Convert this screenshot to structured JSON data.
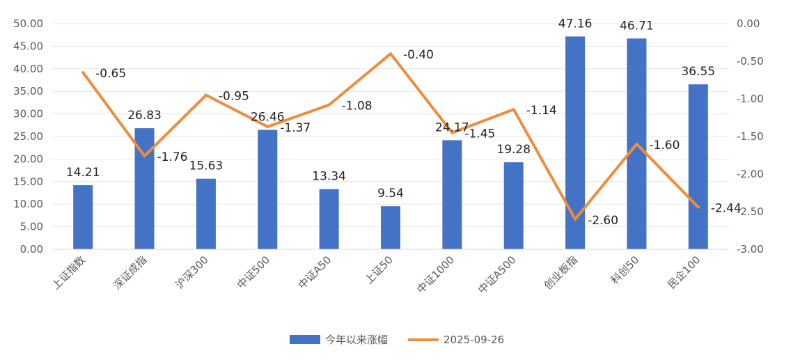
{
  "chart_data": {
    "type": "bar+line",
    "categories": [
      "上证指数",
      "深证成指",
      "沪深300",
      "中证500",
      "中证A50",
      "上证50",
      "中证1000",
      "中证A500",
      "创业板指",
      "科创50",
      "民企100"
    ],
    "series": [
      {
        "name": "今年以来涨幅",
        "type": "bar",
        "axis": "left",
        "color": "#4472C4",
        "values": [
          14.21,
          26.83,
          15.63,
          26.46,
          13.34,
          9.54,
          24.17,
          19.28,
          47.16,
          46.71,
          36.55
        ],
        "labels": [
          "14.21",
          "26.83",
          "15.63",
          "26.46",
          "13.34",
          "9.54",
          "24.17",
          "19.28",
          "47.16",
          "46.71",
          "36.55"
        ]
      },
      {
        "name": "2025-09-26",
        "type": "line",
        "axis": "right",
        "color": "#ED8D3E",
        "values": [
          -0.65,
          -1.76,
          -0.95,
          -1.37,
          -1.08,
          -0.4,
          -1.45,
          -1.14,
          -2.6,
          -1.6,
          -2.44
        ],
        "labels": [
          "-0.65",
          "-1.76",
          "-0.95",
          "-1.37",
          "-1.08",
          "-0.40",
          "-1.45",
          "-1.14",
          "-2.60",
          "-1.60",
          "-2.44"
        ]
      }
    ],
    "left_axis": {
      "ylim": [
        0,
        50
      ],
      "ticks": [
        "0.00",
        "5.00",
        "10.00",
        "15.00",
        "20.00",
        "25.00",
        "30.00",
        "35.00",
        "40.00",
        "45.00",
        "50.00"
      ]
    },
    "right_axis": {
      "ylim": [
        -3,
        0
      ],
      "ticks": [
        "-3.00",
        "-2.50",
        "-2.00",
        "-1.50",
        "-1.00",
        "-0.50",
        "0.00"
      ]
    },
    "grid": true,
    "legend_position": "bottom-center"
  }
}
